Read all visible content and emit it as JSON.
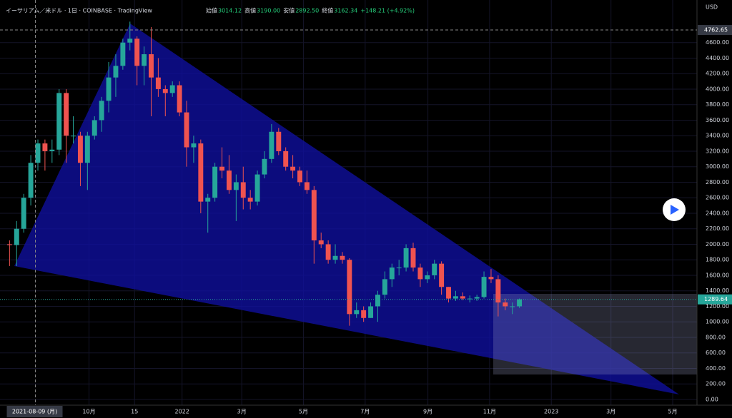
{
  "header": {
    "title": "イーサリアム／米ドル · 1日 · COINBASE · TradingView",
    "items": [
      {
        "label": "始値",
        "value": "3014.12"
      },
      {
        "label": "高値",
        "value": "3190.00"
      },
      {
        "label": "安値",
        "value": "2892.50"
      },
      {
        "label": "終値",
        "value": "3162.34"
      },
      {
        "label": "",
        "value": "+148.21 (+4.92%)"
      }
    ]
  },
  "chart_data": {
    "type": "candlestick",
    "currency": "USD",
    "up_color": "#26a69a",
    "down_color": "#ef5350",
    "grid": true,
    "xlim": [
      "2021-07-05",
      "2023-05-25"
    ],
    "ylim": [
      -74,
      5149
    ],
    "xticks": [
      {
        "value": "2021-10-01",
        "label": "10月"
      },
      {
        "value": "2021-11-15",
        "label": "15"
      },
      {
        "value": "2022-01-01",
        "label": "2022"
      },
      {
        "value": "2022-03-01",
        "label": "3月"
      },
      {
        "value": "2022-05-01",
        "label": "5月"
      },
      {
        "value": "2022-07-01",
        "label": "7月"
      },
      {
        "value": "2022-09-01",
        "label": "9月"
      },
      {
        "value": "2022-11-01",
        "label": "11月"
      },
      {
        "value": "2023-01-01",
        "label": "2023"
      },
      {
        "value": "2023-03-01",
        "label": "3月"
      },
      {
        "value": "2023-05-01",
        "label": "5月"
      }
    ],
    "yticks": [
      {
        "value": 0,
        "label": "0.00"
      },
      {
        "value": 200,
        "label": "200.00"
      },
      {
        "value": 400,
        "label": "400.00"
      },
      {
        "value": 600,
        "label": "600.00"
      },
      {
        "value": 800,
        "label": "800.00"
      },
      {
        "value": 1000,
        "label": "1000.00"
      },
      {
        "value": 1200,
        "label": "1200.00"
      },
      {
        "value": 1400,
        "label": "1400.00"
      },
      {
        "value": 1600,
        "label": "1600.00"
      },
      {
        "value": 1800,
        "label": "1800.00"
      },
      {
        "value": 2000,
        "label": "2000.00"
      },
      {
        "value": 2200,
        "label": "2200.00"
      },
      {
        "value": 2400,
        "label": "2400.00"
      },
      {
        "value": 2600,
        "label": "2600.00"
      },
      {
        "value": 2800,
        "label": "2800.00"
      },
      {
        "value": 3000,
        "label": "3000.00"
      },
      {
        "value": 3200,
        "label": "3200.00"
      },
      {
        "value": 3400,
        "label": "3400.00"
      },
      {
        "value": 3600,
        "label": "3600.00"
      },
      {
        "value": 3800,
        "label": "3800.00"
      },
      {
        "value": 4000,
        "label": "4000.00"
      },
      {
        "value": 4200,
        "label": "4200.00"
      },
      {
        "value": 4400,
        "label": "4400.00"
      },
      {
        "value": 4600,
        "label": "4600.00"
      }
    ],
    "crosshair": {
      "x": {
        "value": "2021-08-09",
        "label": "2021-08-09 (月)"
      },
      "y": 4762.65
    },
    "last_price": 1289.64,
    "x": [
      "2021-07-12",
      "2021-07-19",
      "2021-07-26",
      "2021-08-02",
      "2021-08-09",
      "2021-08-16",
      "2021-08-23",
      "2021-08-30",
      "2021-09-06",
      "2021-09-13",
      "2021-09-20",
      "2021-09-27",
      "2021-10-04",
      "2021-10-11",
      "2021-10-18",
      "2021-10-25",
      "2021-11-01",
      "2021-11-08",
      "2021-11-15",
      "2021-11-22",
      "2021-11-29",
      "2021-12-06",
      "2021-12-13",
      "2021-12-20",
      "2021-12-27",
      "2022-01-03",
      "2022-01-10",
      "2022-01-17",
      "2022-01-24",
      "2022-01-31",
      "2022-02-07",
      "2022-02-14",
      "2022-02-21",
      "2022-02-28",
      "2022-03-07",
      "2022-03-14",
      "2022-03-21",
      "2022-03-28",
      "2022-04-04",
      "2022-04-11",
      "2022-04-18",
      "2022-04-25",
      "2022-05-02",
      "2022-05-09",
      "2022-05-16",
      "2022-05-23",
      "2022-05-30",
      "2022-06-06",
      "2022-06-13",
      "2022-06-20",
      "2022-06-27",
      "2022-07-04",
      "2022-07-11",
      "2022-07-18",
      "2022-07-25",
      "2022-08-01",
      "2022-08-08",
      "2022-08-15",
      "2022-08-22",
      "2022-08-29",
      "2022-09-05",
      "2022-09-12",
      "2022-09-19",
      "2022-09-26",
      "2022-10-03",
      "2022-10-10",
      "2022-10-17",
      "2022-10-24",
      "2022-10-31",
      "2022-11-07",
      "2022-11-14",
      "2022-11-21",
      "2022-11-28"
    ],
    "ohlc": [
      [
        2000,
        2050,
        1720,
        1990
      ],
      [
        1990,
        2300,
        1720,
        2200
      ],
      [
        2200,
        2650,
        2150,
        2600
      ],
      [
        2600,
        3150,
        2500,
        3050
      ],
      [
        3050,
        3350,
        2950,
        3300
      ],
      [
        3300,
        3350,
        2950,
        3200
      ],
      [
        3200,
        3350,
        3050,
        3220
      ],
      [
        3220,
        4000,
        3150,
        3950
      ],
      [
        3950,
        4000,
        3050,
        3400
      ],
      [
        3400,
        3650,
        3300,
        3400
      ],
      [
        3400,
        3450,
        2750,
        3050
      ],
      [
        3050,
        3450,
        2700,
        3400
      ],
      [
        3400,
        3650,
        3350,
        3600
      ],
      [
        3600,
        3900,
        3450,
        3850
      ],
      [
        3850,
        4350,
        3700,
        4150
      ],
      [
        4150,
        4450,
        3900,
        4300
      ],
      [
        4300,
        4650,
        4250,
        4600
      ],
      [
        4600,
        4870,
        4500,
        4650
      ],
      [
        4650,
        4680,
        4050,
        4300
      ],
      [
        4300,
        4550,
        4050,
        4450
      ],
      [
        4450,
        4800,
        3650,
        4150
      ],
      [
        4150,
        4400,
        3900,
        4000
      ],
      [
        4000,
        4050,
        3650,
        3950
      ],
      [
        3950,
        4100,
        3900,
        4050
      ],
      [
        4050,
        4100,
        3650,
        3700
      ],
      [
        3700,
        3850,
        3000,
        3250
      ],
      [
        3250,
        3400,
        3050,
        3300
      ],
      [
        3300,
        3350,
        2400,
        2550
      ],
      [
        2550,
        2650,
        2150,
        2600
      ],
      [
        2600,
        3050,
        2550,
        3000
      ],
      [
        3000,
        3250,
        2850,
        2950
      ],
      [
        2950,
        3150,
        2650,
        2700
      ],
      [
        2700,
        2900,
        2300,
        2800
      ],
      [
        2800,
        3000,
        2450,
        2600
      ],
      [
        2600,
        2700,
        2450,
        2550
      ],
      [
        2550,
        2950,
        2500,
        2900
      ],
      [
        2900,
        3200,
        2850,
        3100
      ],
      [
        3100,
        3550,
        3050,
        3450
      ],
      [
        3450,
        3500,
        3150,
        3200
      ],
      [
        3200,
        3250,
        2950,
        3000
      ],
      [
        3000,
        3150,
        2850,
        2950
      ],
      [
        2950,
        3000,
        2750,
        2800
      ],
      [
        2800,
        2950,
        2650,
        2700
      ],
      [
        2700,
        2750,
        1750,
        2050
      ],
      [
        2050,
        2150,
        1950,
        2000
      ],
      [
        2000,
        2050,
        1750,
        1800
      ],
      [
        1800,
        2000,
        1750,
        1850
      ],
      [
        1850,
        1900,
        1750,
        1800
      ],
      [
        1800,
        1820,
        950,
        1100
      ],
      [
        1100,
        1250,
        1050,
        1150
      ],
      [
        1150,
        1200,
        1000,
        1050
      ],
      [
        1050,
        1250,
        1050,
        1200
      ],
      [
        1200,
        1400,
        1000,
        1350
      ],
      [
        1350,
        1650,
        1300,
        1550
      ],
      [
        1550,
        1750,
        1450,
        1700
      ],
      [
        1700,
        1800,
        1600,
        1700
      ],
      [
        1700,
        2000,
        1650,
        1950
      ],
      [
        1950,
        2020,
        1650,
        1700
      ],
      [
        1700,
        1750,
        1450,
        1550
      ],
      [
        1550,
        1650,
        1500,
        1600
      ],
      [
        1600,
        1800,
        1550,
        1750
      ],
      [
        1750,
        1780,
        1350,
        1450
      ],
      [
        1450,
        1450,
        1250,
        1300
      ],
      [
        1300,
        1400,
        1270,
        1330
      ],
      [
        1330,
        1380,
        1280,
        1300
      ],
      [
        1300,
        1340,
        1250,
        1300
      ],
      [
        1300,
        1350,
        1270,
        1320
      ],
      [
        1320,
        1650,
        1300,
        1580
      ],
      [
        1580,
        1680,
        1500,
        1550
      ],
      [
        1550,
        1600,
        1070,
        1250
      ],
      [
        1250,
        1300,
        1150,
        1200
      ],
      [
        1200,
        1250,
        1100,
        1200
      ],
      [
        1200,
        1300,
        1180,
        1290
      ]
    ]
  }
}
